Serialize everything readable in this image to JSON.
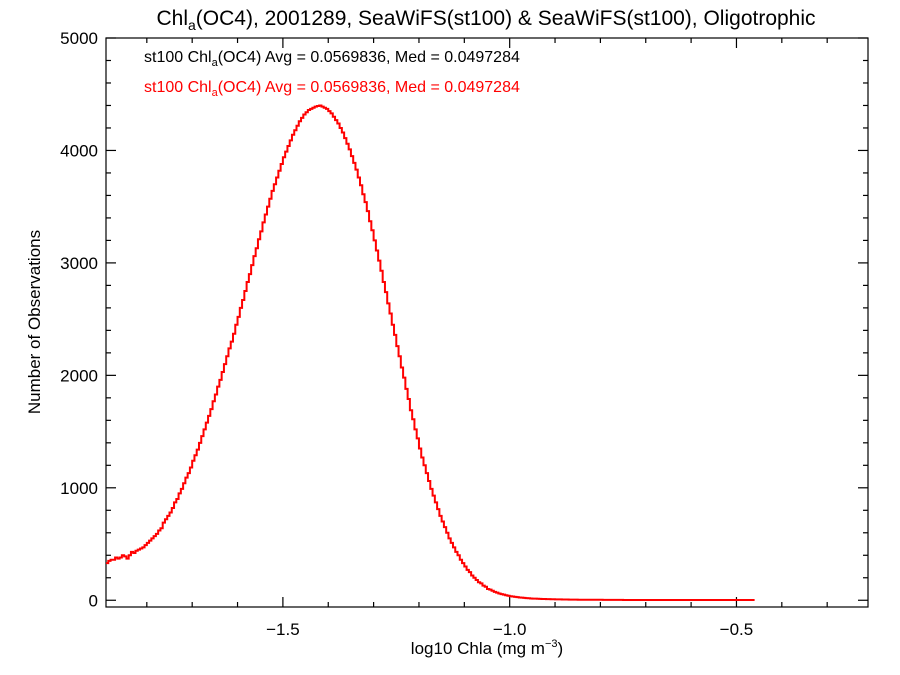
{
  "chart_data": {
    "type": "bar",
    "title": "Chl(OC4), 2001289, SeaWiFS(st100) & SeaWiFS(st100), Oligotrophic",
    "title_parts": {
      "pre": "Chl",
      "sub": "a",
      "post": "(OC4), 2001289, SeaWiFS(st100) & SeaWiFS(st100), Oligotrophic"
    },
    "xlabel": "log10 Chla (mg m-3)",
    "xlabel_parts": {
      "pre": "log10 Chla (mg m",
      "sup": "−3",
      "post": ")"
    },
    "ylabel": "Number of Observations",
    "xlim": [
      -1.89,
      -0.21
    ],
    "ylim": [
      -60,
      5000
    ],
    "xticks": [
      -1.5,
      -1.0,
      -0.5
    ],
    "xtick_labels": [
      "−1.5",
      "−1.0",
      "−0.5"
    ],
    "yticks": [
      0,
      1000,
      2000,
      3000,
      4000,
      5000
    ],
    "ytick_labels": [
      "0",
      "1000",
      "2000",
      "3000",
      "4000",
      "5000"
    ],
    "grid": false,
    "legend": [
      {
        "pre": "st100 Chl",
        "sub": "a",
        "post": "(OC4) Avg = 0.0569836, Med = 0.0497284",
        "color": "#000000"
      },
      {
        "pre": "st100 Chl",
        "sub": "a",
        "post": "(OC4) Avg = 0.0569836, Med = 0.0497284",
        "color": "#ff0000"
      }
    ],
    "legend_placement": "top-left",
    "series": [
      {
        "name": "st100 Chla(OC4) Avg = 0.0569836, Med = 0.0497284",
        "color": "#ff0000",
        "style": "step",
        "bin_start": -1.89,
        "bin_width": 0.005,
        "values": [
          330,
          350,
          360,
          360,
          380,
          370,
          380,
          400,
          390,
          370,
          400,
          430,
          420,
          440,
          450,
          460,
          470,
          490,
          510,
          530,
          550,
          570,
          590,
          620,
          640,
          690,
          720,
          750,
          780,
          820,
          870,
          900,
          950,
          990,
          1040,
          1090,
          1130,
          1180,
          1240,
          1290,
          1340,
          1400,
          1460,
          1520,
          1580,
          1640,
          1700,
          1770,
          1830,
          1900,
          1960,
          2030,
          2100,
          2170,
          2240,
          2300,
          2370,
          2450,
          2520,
          2600,
          2670,
          2750,
          2830,
          2900,
          2980,
          3060,
          3130,
          3210,
          3280,
          3360,
          3430,
          3500,
          3570,
          3640,
          3700,
          3760,
          3820,
          3880,
          3940,
          3990,
          4040,
          4090,
          4140,
          4180,
          4220,
          4260,
          4290,
          4320,
          4340,
          4360,
          4370,
          4380,
          4390,
          4395,
          4400,
          4390,
          4380,
          4370,
          4350,
          4330,
          4300,
          4270,
          4240,
          4200,
          4160,
          4110,
          4060,
          4010,
          3950,
          3890,
          3830,
          3760,
          3690,
          3610,
          3540,
          3460,
          3370,
          3290,
          3200,
          3110,
          3020,
          2930,
          2830,
          2740,
          2640,
          2550,
          2450,
          2360,
          2260,
          2170,
          2070,
          1980,
          1880,
          1790,
          1690,
          1610,
          1520,
          1440,
          1350,
          1270,
          1200,
          1130,
          1060,
          990,
          930,
          870,
          810,
          750,
          700,
          650,
          600,
          550,
          510,
          470,
          430,
          400,
          360,
          330,
          300,
          270,
          250,
          220,
          200,
          180,
          160,
          150,
          130,
          120,
          100,
          95,
          85,
          75,
          68,
          60,
          55,
          50,
          45,
          40,
          36,
          33,
          30,
          28,
          25,
          23,
          21,
          19,
          18,
          16,
          15,
          14,
          13,
          12,
          11,
          11,
          10,
          10,
          9,
          9,
          8,
          8,
          8,
          7,
          7,
          7,
          6,
          6,
          6,
          6,
          5,
          5,
          5,
          5,
          5,
          4,
          4,
          4,
          4,
          4,
          4,
          3,
          3,
          3,
          3,
          3,
          3,
          3,
          3,
          3,
          2,
          2,
          2,
          2,
          2,
          2,
          2,
          2,
          2,
          2,
          2,
          2,
          2,
          2,
          2,
          2,
          2,
          2,
          2,
          2,
          2,
          2,
          2,
          2,
          2,
          2,
          2,
          2,
          2,
          2,
          2,
          2,
          2,
          2,
          2,
          2,
          2,
          2,
          2,
          2,
          2,
          2,
          2,
          2,
          2,
          2,
          2,
          2,
          2,
          2,
          2,
          2,
          2,
          2,
          2,
          2,
          2,
          2
        ]
      }
    ]
  }
}
